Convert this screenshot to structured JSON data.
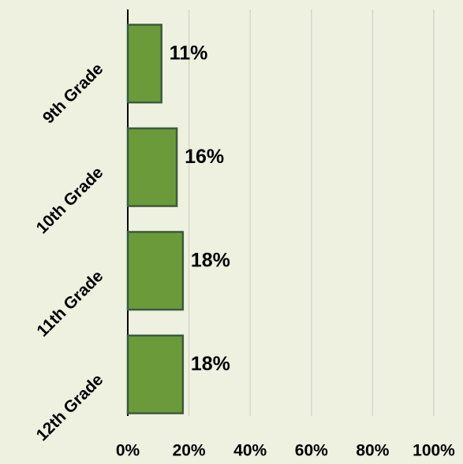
{
  "chart_data": {
    "type": "hbar",
    "categories": [
      "9th Grade",
      "10th Grade",
      "11th Grade",
      "12th Grade"
    ],
    "values": [
      11,
      16,
      18,
      18
    ],
    "value_labels": [
      "11%",
      "16%",
      "18%",
      "18%"
    ],
    "color": "#6b9a3a",
    "xlim": [
      0,
      100
    ],
    "xticks": [
      {
        "value": 0,
        "label": "0%"
      },
      {
        "value": 20,
        "label": "20%"
      },
      {
        "value": 40,
        "label": "40%"
      },
      {
        "value": 60,
        "label": "60%"
      },
      {
        "value": 80,
        "label": "80%"
      },
      {
        "value": 100,
        "label": "100%"
      }
    ],
    "grid": true
  }
}
